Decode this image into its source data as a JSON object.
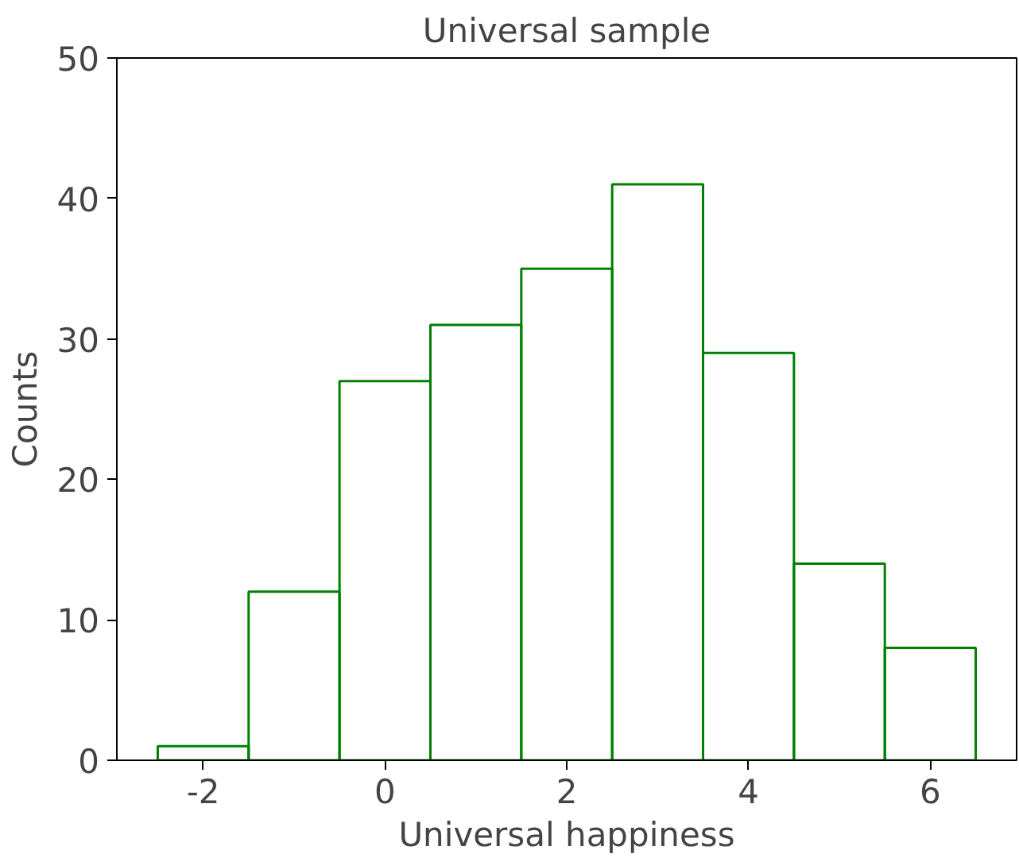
{
  "chart_data": {
    "type": "histogram",
    "title": "Universal sample",
    "xlabel": "Universal happiness",
    "ylabel": "Counts",
    "bins": [
      -2.5,
      -1.5,
      -0.5,
      0.5,
      1.5,
      2.5,
      3.5,
      4.5,
      5.5,
      6.5
    ],
    "values": [
      1,
      12,
      27,
      31,
      35,
      41,
      29,
      14,
      8
    ],
    "color": "#008000",
    "xlim": [
      -2.95,
      6.95
    ],
    "ylim": [
      0,
      50
    ],
    "xticks": [
      {
        "value": -2,
        "label": "-2"
      },
      0,
      2,
      4,
      6
    ],
    "yticks": [
      0,
      10,
      20,
      30,
      40,
      50
    ],
    "grid": false,
    "legend": false
  }
}
